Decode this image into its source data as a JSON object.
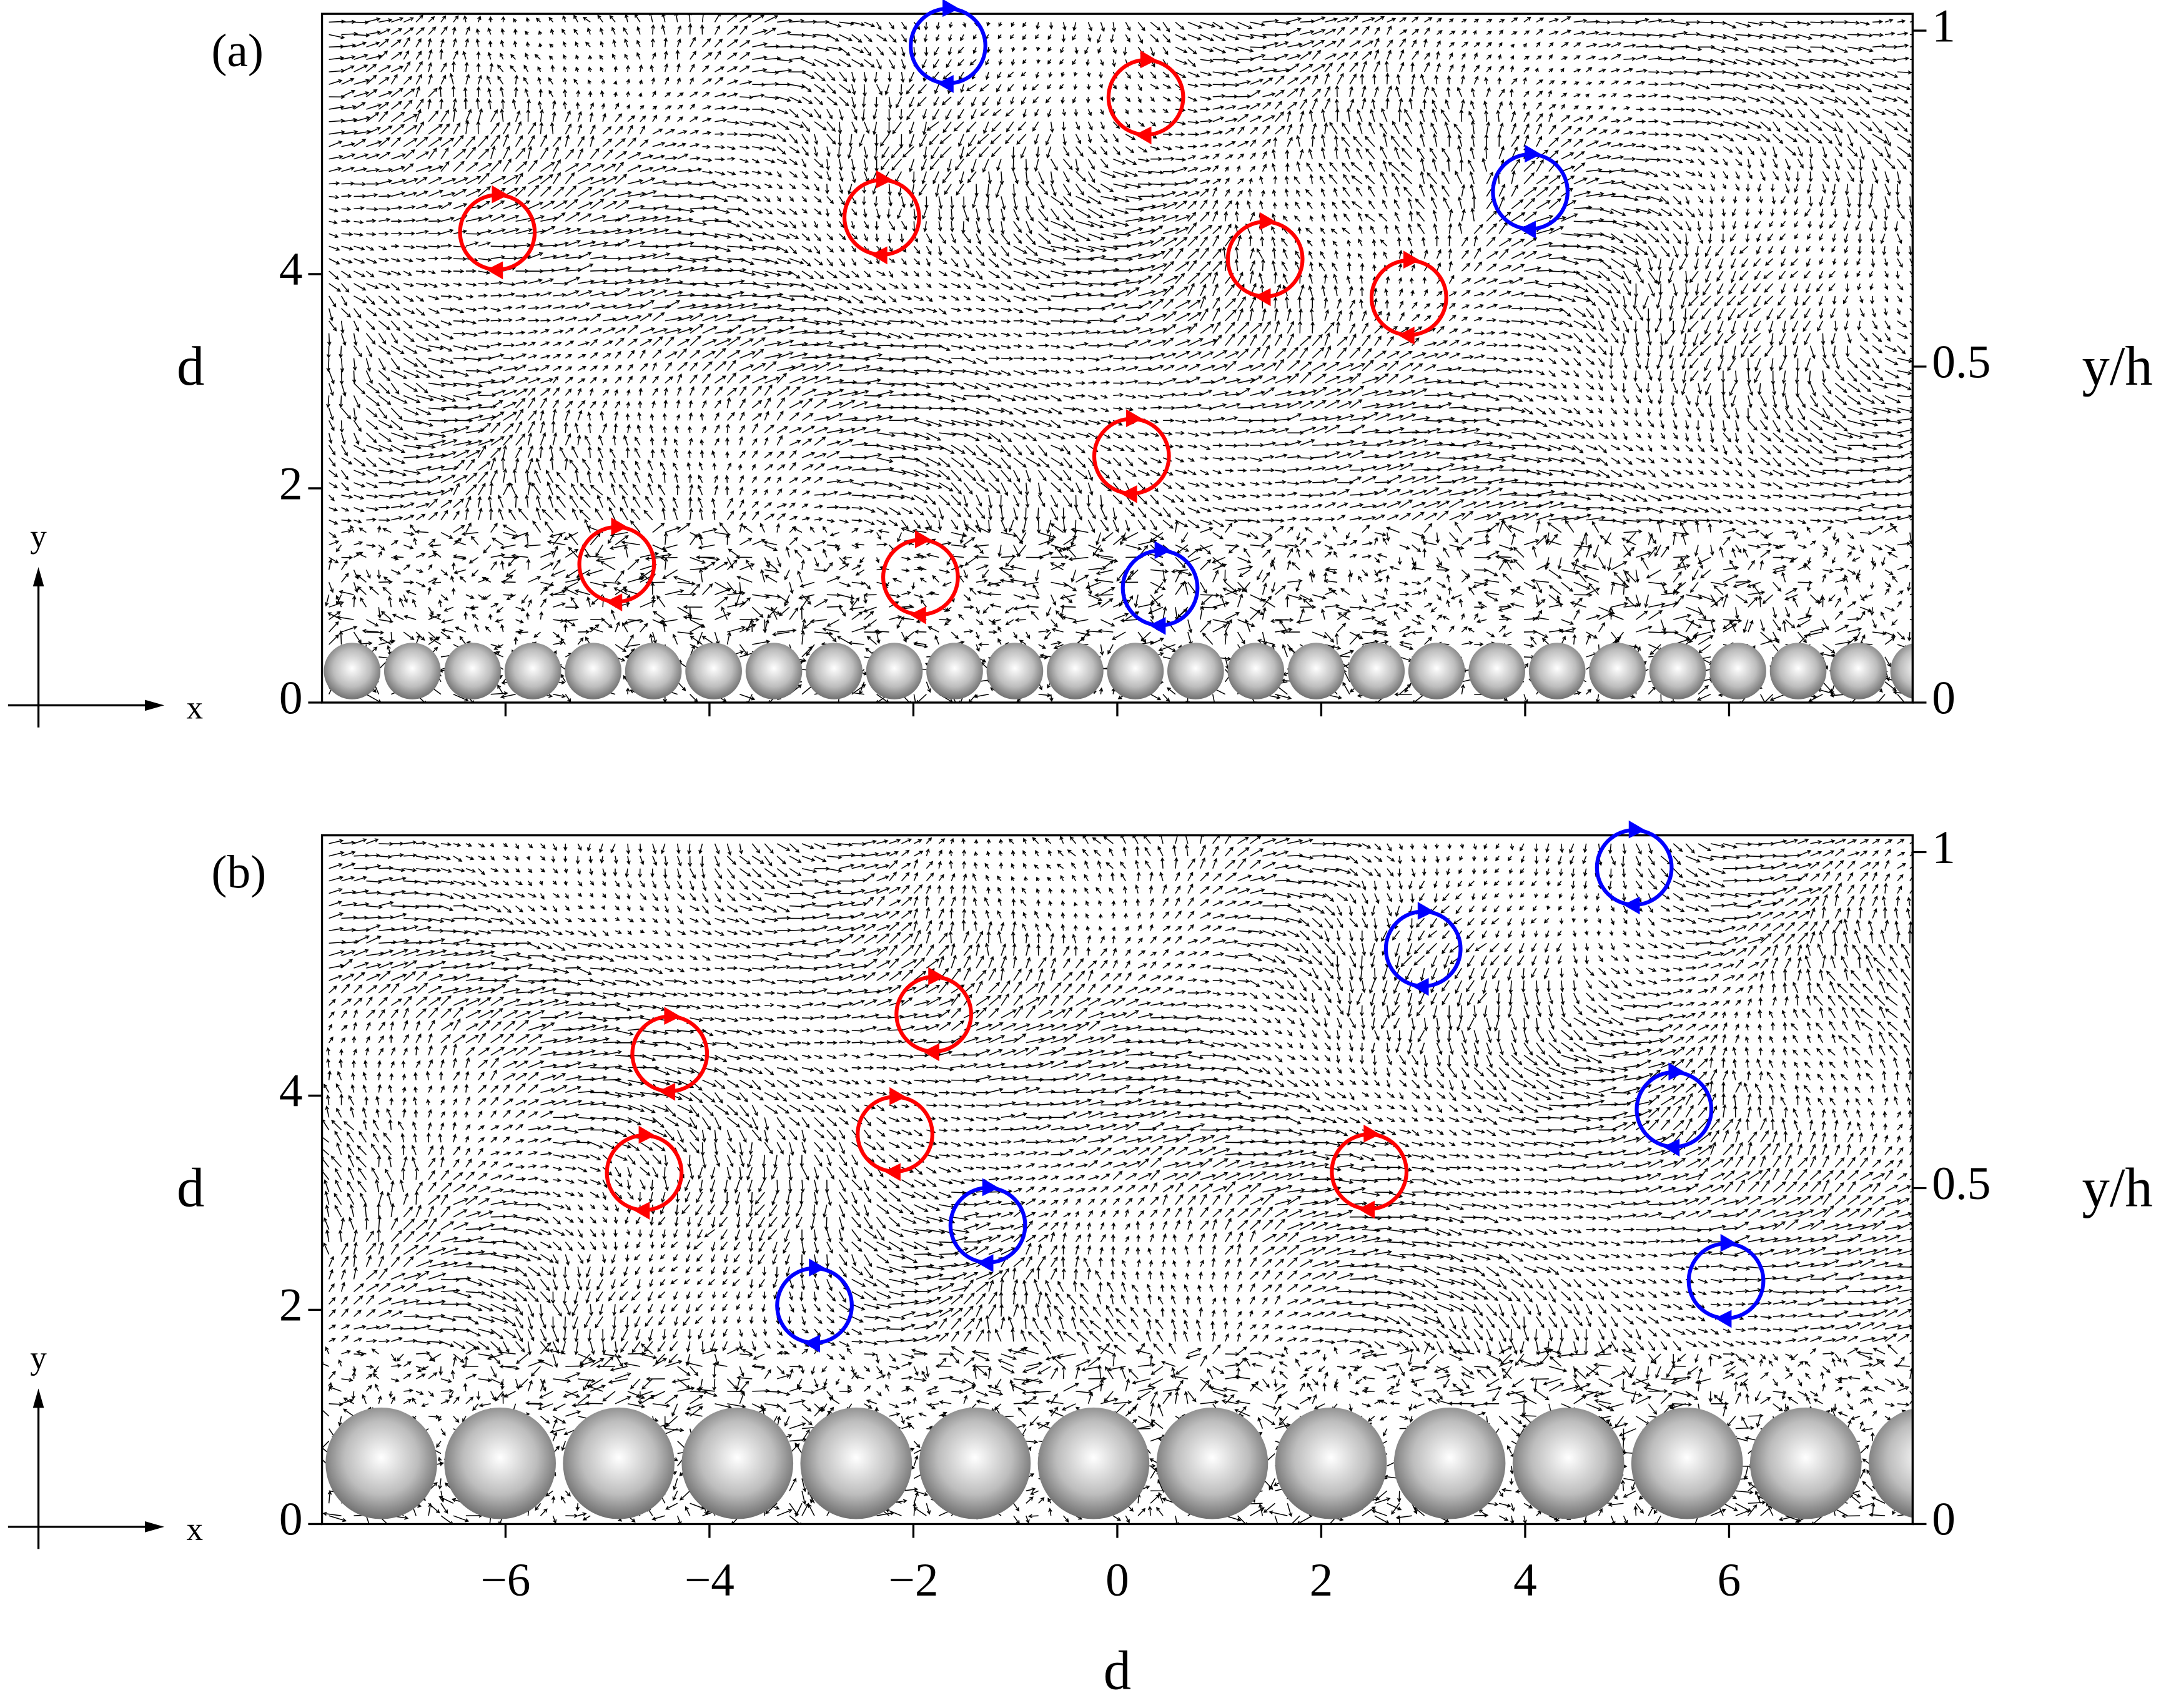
{
  "chart_data": [
    {
      "type": "vortex",
      "panel_label": "(a)",
      "ylabel": "d",
      "y2label": "y/h",
      "inset_labels": {
        "x": "x",
        "y": "y"
      },
      "xlim": [
        -7.8,
        7.8
      ],
      "xticks": [
        -6,
        -4,
        -2,
        0,
        2,
        4,
        6
      ],
      "ylim": [
        0,
        6.43
      ],
      "yticks": [
        0,
        2,
        4
      ],
      "y2lim": [
        0,
        1.025
      ],
      "y2ticks": [
        0,
        0.5,
        1
      ],
      "series": [
        {
          "color": "#ff0000",
          "x": [
            -6.08,
            -4.91,
            -2.31,
            -1.93,
            0.28,
            0.14,
            1.45,
            2.86
          ],
          "y": [
            4.39,
            1.29,
            4.53,
            1.17,
            5.65,
            2.3,
            4.14,
            3.78
          ]
        },
        {
          "color": "#0000ff",
          "x": [
            -1.66,
            0.42,
            4.05
          ],
          "y": [
            6.13,
            1.07,
            4.77
          ]
        }
      ]
    },
    {
      "type": "vortex",
      "panel_label": "(b)",
      "ylabel": "d",
      "y2label": "y/h",
      "xlabel": "d",
      "inset_labels": {
        "x": "x",
        "y": "y"
      },
      "xlim": [
        -7.8,
        7.8
      ],
      "xticks": [
        {
          "value": -6,
          "label": "−6"
        },
        {
          "value": -4,
          "label": "−4"
        },
        {
          "value": -2,
          "label": "−2"
        },
        0,
        2,
        4,
        6
      ],
      "ylim": [
        0,
        6.43
      ],
      "yticks": [
        0,
        2,
        4
      ],
      "y2lim": [
        0,
        1.025
      ],
      "y2ticks": [
        0,
        0.5,
        1
      ],
      "series": [
        {
          "color": "#ff0000",
          "x": [
            -4.39,
            -4.64,
            -1.8,
            -2.18,
            2.47
          ],
          "y": [
            4.39,
            3.28,
            4.76,
            3.64,
            3.29
          ]
        },
        {
          "color": "#0000ff",
          "x": [
            -2.97,
            -1.27,
            3.0,
            5.07,
            5.46,
            5.97
          ],
          "y": [
            2.04,
            2.79,
            5.37,
            6.13,
            3.87,
            2.27
          ]
        }
      ]
    }
  ]
}
